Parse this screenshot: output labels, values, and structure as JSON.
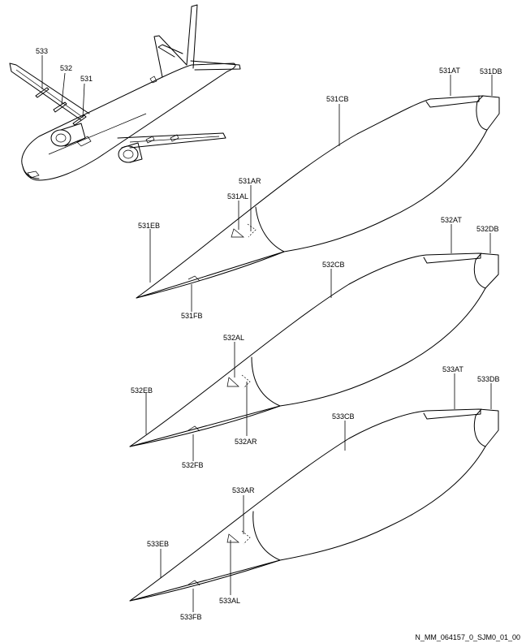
{
  "labels": {
    "aircraft": {
      "p533": "533",
      "p532": "532",
      "p531": "531"
    },
    "fairing531": {
      "at": "531AT",
      "db": "531DB",
      "cb": "531CB",
      "ar": "531AR",
      "al": "531AL",
      "eb": "531EB",
      "fb": "531FB"
    },
    "fairing532": {
      "at": "532AT",
      "db": "532DB",
      "cb": "532CB",
      "al": "532AL",
      "eb": "532EB",
      "ar": "532AR",
      "fb": "532FB"
    },
    "fairing533": {
      "at": "533AT",
      "db": "533DB",
      "cb": "533CB",
      "ar": "533AR",
      "eb": "533EB",
      "al": "533AL",
      "fb": "533FB"
    }
  },
  "drawing_ref": "N_MM_064157_0_SJM0_01_00"
}
